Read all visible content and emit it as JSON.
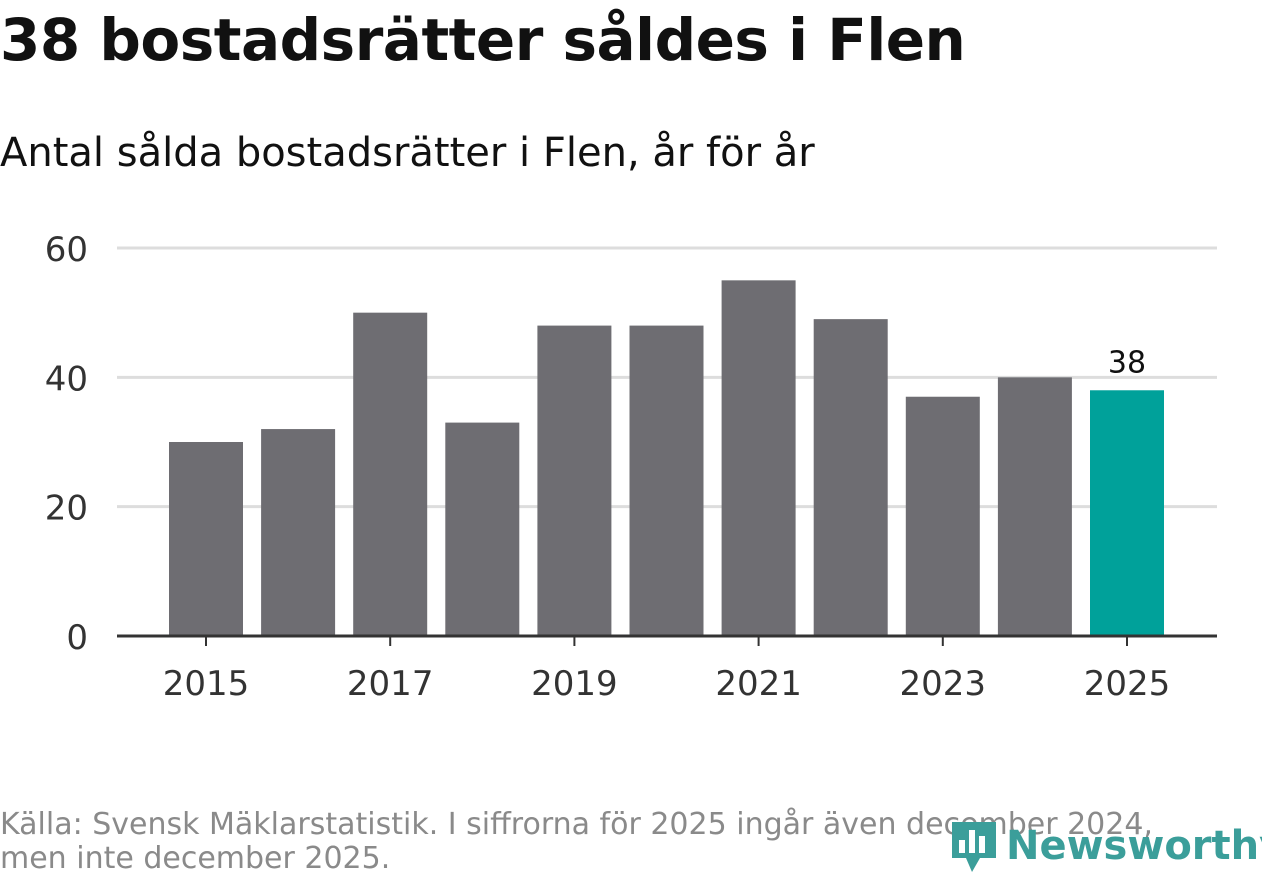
{
  "title": "38 bostadsrätter såldes i Flen",
  "subtitle": "Antal sålda bostadsrätter i Flen, år för år",
  "footer": {
    "line1": "Källa: Svensk Mäklarstatistik. I siffrorna för 2025 ingår även december 2024,",
    "line2": "men inte december 2025."
  },
  "logo": {
    "text": "Newsworthy",
    "icon": "bar-chart-pin-icon"
  },
  "colors": {
    "bar": "#6e6d72",
    "highlight": "#00a19a",
    "grid": "#dddddd",
    "axis": "#333333",
    "text": "#333333"
  },
  "chart_data": {
    "type": "bar",
    "title": "38 bostadsrätter såldes i Flen",
    "subtitle": "Antal sålda bostadsrätter i Flen, år för år",
    "categories": [
      "2015",
      "2016",
      "2017",
      "2018",
      "2019",
      "2020",
      "2021",
      "2022",
      "2023",
      "2024",
      "2025"
    ],
    "values": [
      30,
      32,
      50,
      33,
      48,
      48,
      55,
      49,
      37,
      40,
      38
    ],
    "highlight_category": "2025",
    "data_label": {
      "category": "2025",
      "text": "38"
    },
    "xticks": [
      "2015",
      "2017",
      "2019",
      "2021",
      "2023",
      "2025"
    ],
    "yticks": [
      0,
      20,
      40,
      60
    ],
    "ylim": [
      0,
      60
    ],
    "grid": true,
    "xlabel": "",
    "ylabel": ""
  }
}
